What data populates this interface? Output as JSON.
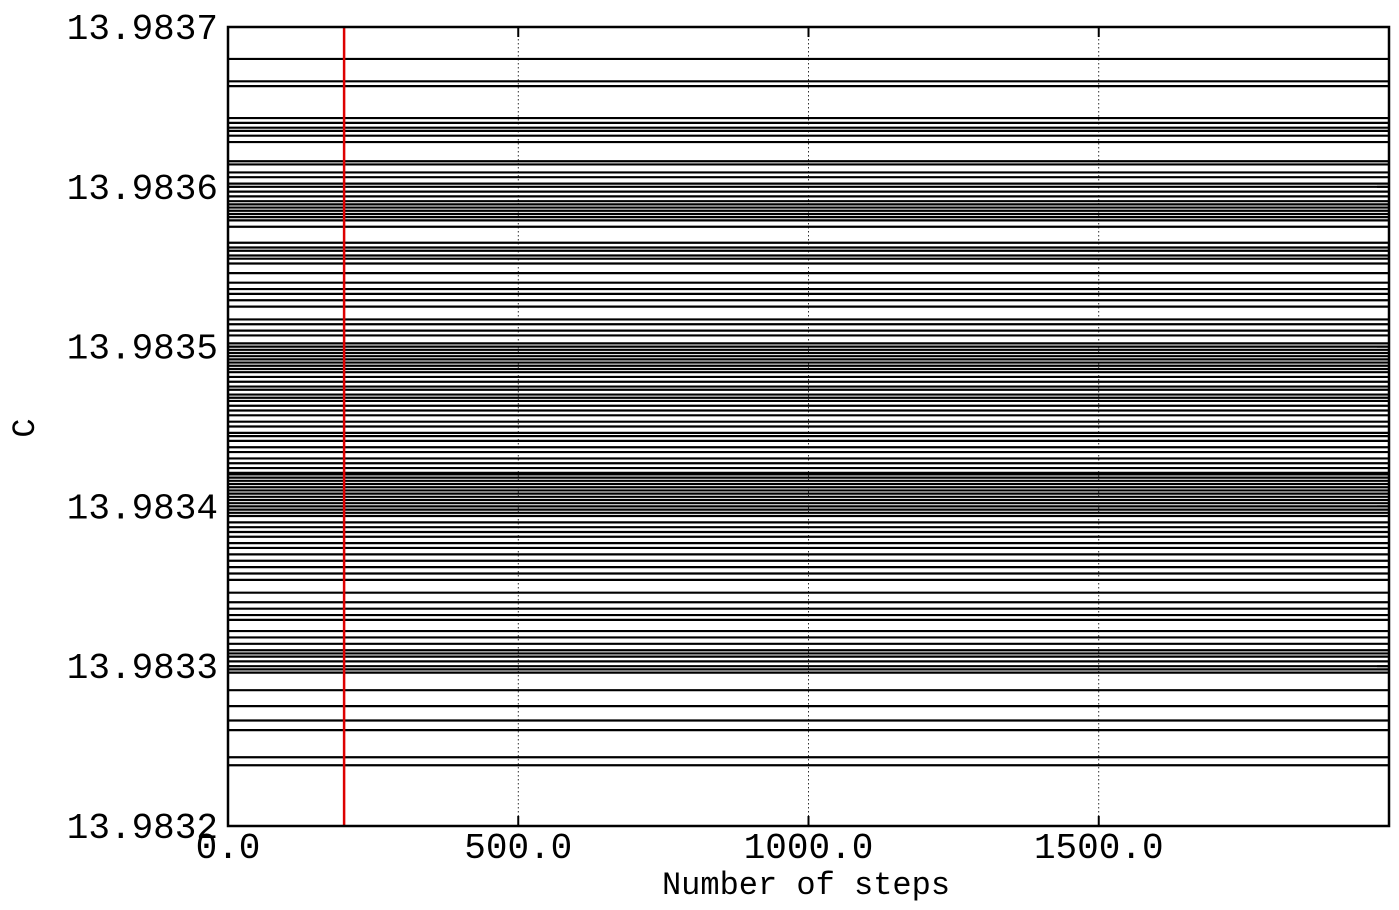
{
  "chart_data": {
    "type": "line",
    "title": "",
    "xlabel": "Number of steps",
    "ylabel": "C",
    "xlim": [
      0,
      2000
    ],
    "ylim": [
      13.9832,
      13.9837
    ],
    "x_ticks": [
      0,
      500,
      1000,
      1500
    ],
    "x_tick_labels": [
      "0.0",
      "500.0",
      "1000.0",
      "1500.0"
    ],
    "y_ticks": [
      13.9832,
      13.9833,
      13.9834,
      13.9835,
      13.9836,
      13.9837
    ],
    "y_tick_labels": [
      "13.9832",
      "13.9833",
      "13.9834",
      "13.9835",
      "13.9836",
      "13.9837"
    ],
    "grid": true,
    "series_color": "#000000",
    "walker_values": [
      13.98368,
      13.983666,
      13.983663,
      13.983643,
      13.98364,
      13.983637,
      13.983635,
      13.983632,
      13.983628,
      13.983616,
      13.983614,
      13.983609,
      13.983606,
      13.983602,
      13.9836,
      13.983597,
      13.983594,
      13.983591,
      13.983589,
      13.983587,
      13.983585,
      13.983583,
      13.983581,
      13.983579,
      13.983575,
      13.983565,
      13.983562,
      13.98356,
      13.983557,
      13.983555,
      13.983552,
      13.983546,
      13.98354,
      13.983536,
      13.983533,
      13.983529,
      13.983525,
      13.983517,
      13.983514,
      13.98351,
      13.983507,
      13.983502,
      13.9835,
      13.983498,
      13.983496,
      13.983494,
      13.983492,
      13.98349,
      13.983488,
      13.983486,
      13.983484,
      13.983481,
      13.983478,
      13.983475,
      13.983473,
      13.98347,
      13.983468,
      13.983466,
      13.983463,
      13.98346,
      13.983457,
      13.983453,
      13.98345,
      13.983446,
      13.983444,
      13.983441,
      13.983437,
      13.983434,
      13.98343,
      13.983427,
      13.983424,
      13.983421,
      13.98342,
      13.983418,
      13.983416,
      13.983414,
      13.983412,
      13.98341,
      13.983408,
      13.983406,
      13.983404,
      13.983402,
      13.9834,
      13.983398,
      13.983396,
      13.983394,
      13.98339,
      13.983387,
      13.983384,
      13.983381,
      13.983377,
      13.983374,
      13.98337,
      13.983366,
      13.983362,
      13.983358,
      13.983354,
      13.983346,
      13.98334,
      13.983336,
      13.983332,
      13.983329,
      13.983322,
      13.983318,
      13.983314,
      13.98331,
      13.983308,
      13.983306,
      13.983303,
      13.9833,
      13.983298,
      13.983296,
      13.983285,
      13.983275,
      13.983266,
      13.98326,
      13.983243,
      13.983238
    ],
    "burn_in_line": {
      "x": 200,
      "color": "#dd0000"
    }
  }
}
